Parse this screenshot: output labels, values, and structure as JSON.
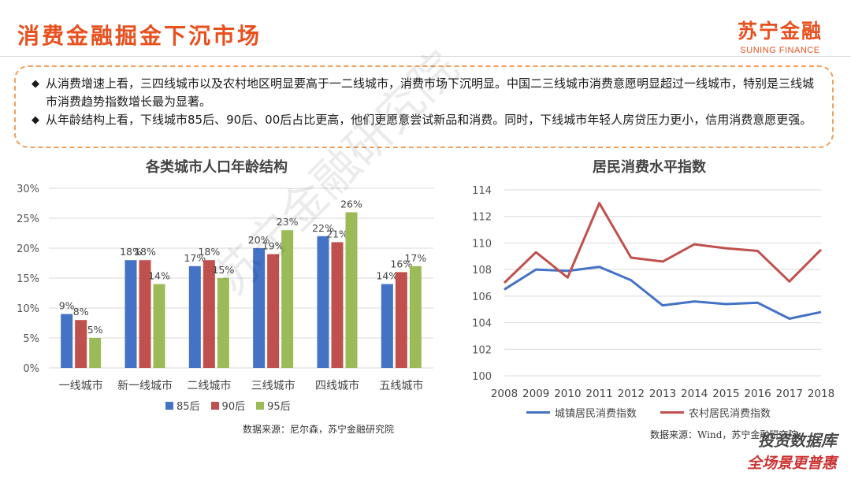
{
  "header": {
    "title": "消费金融掘金下沉市场",
    "brand_cn": "苏宁金融",
    "brand_en": "SUNING FINANCE"
  },
  "notes": [
    "从消费增速上看，三四线城市以及农村地区明显要高于一二线城市，消费市场下沉明显。中国二三线城市消费意愿明显超过一线城市，特别是三线城市消费趋势指数增长最为显著。",
    "从年龄结构上看，下线城市85后、90后、00后占比更高，他们更愿意尝试新品和消费。同时，下线城市年轻人房贷压力更小，信用消费意愿更强。"
  ],
  "watermark": "苏宁金融研究院",
  "footer_marks": {
    "line1": "投资数据库",
    "line2": "全场景更普惠"
  },
  "chart_data": [
    {
      "type": "bar",
      "title": "各类城市人口年龄结构",
      "categories": [
        "一线城市",
        "新一线城市",
        "二线城市",
        "三线城市",
        "四线城市",
        "五线城市"
      ],
      "series": [
        {
          "name": "85后",
          "values": [
            9,
            18,
            17,
            20,
            22,
            14
          ],
          "color": "#4472c4"
        },
        {
          "name": "90后",
          "values": [
            8,
            18,
            18,
            19,
            21,
            16
          ],
          "color": "#c0504d"
        },
        {
          "name": "95后",
          "values": [
            5,
            14,
            15,
            23,
            26,
            17
          ],
          "color": "#9bbb59"
        }
      ],
      "yticks": [
        "0%",
        "5%",
        "10%",
        "15%",
        "20%",
        "25%",
        "30%"
      ],
      "ylim": [
        0,
        30
      ],
      "unit": "%",
      "legend": "bottom",
      "source": "数据来源：尼尔森，苏宁金融研究院"
    },
    {
      "type": "line",
      "title": "居民消费水平指数",
      "x": [
        "2008",
        "2009",
        "2010",
        "2011",
        "2012",
        "2013",
        "2014",
        "2015",
        "2016",
        "2017",
        "2018"
      ],
      "series": [
        {
          "name": "城镇居民消费指数",
          "values": [
            106.5,
            108.0,
            107.9,
            108.2,
            107.2,
            105.3,
            105.6,
            105.4,
            105.5,
            104.3,
            104.8
          ],
          "color": "#4472c4"
        },
        {
          "name": "农村居民消费指数",
          "values": [
            107.0,
            109.3,
            107.4,
            113.0,
            108.9,
            108.6,
            109.9,
            109.6,
            109.4,
            107.1,
            109.5
          ],
          "color": "#c0504d"
        }
      ],
      "yticks": [
        "100",
        "102",
        "104",
        "106",
        "108",
        "110",
        "112",
        "114"
      ],
      "ylim": [
        100,
        114
      ],
      "legend": "bottom",
      "source": "数据来源：Wind，苏宁金融研究院"
    }
  ]
}
